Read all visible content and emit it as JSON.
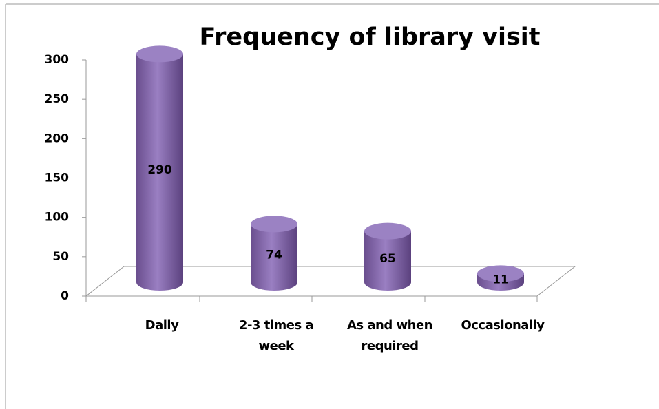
{
  "chart_data": {
    "type": "bar3d",
    "title": "Frequency of library visit",
    "categories": [
      "Daily",
      "2-3 times a week",
      "As and when required",
      "Occasionally"
    ],
    "values": [
      290,
      74,
      65,
      11
    ],
    "color": "#8064a2",
    "ylim": [
      0,
      300
    ],
    "yticks": [
      0,
      50,
      100,
      150,
      200,
      250,
      300
    ]
  }
}
